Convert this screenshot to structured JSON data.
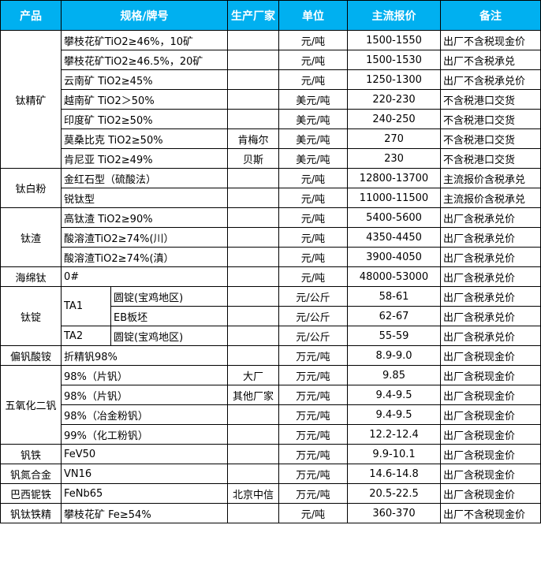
{
  "header": {
    "product": "产品",
    "spec": "规格/牌号",
    "maker": "生产厂家",
    "unit": "单位",
    "price": "主流报价",
    "note": "备注"
  },
  "header_color": "#00b0f0",
  "groups": [
    {
      "product": "钛精矿",
      "rows": [
        {
          "spec": "攀枝花矿TiO2≥46%，10矿",
          "maker": "",
          "unit": "元/吨",
          "price": "1500-1550",
          "note": "出厂不含税现金价"
        },
        {
          "spec": "攀枝花矿TiO2≥46.5%，20矿",
          "maker": "",
          "unit": "元/吨",
          "price": "1500-1530",
          "note": "出厂不含税承兑"
        },
        {
          "spec": "云南矿 TiO2≥45%",
          "maker": "",
          "unit": "元/吨",
          "price": "1250-1300",
          "note": "出厂不含税承兑价"
        },
        {
          "spec": "越南矿 TiO2＞50%",
          "maker": "",
          "unit": "美元/吨",
          "price": "220-230",
          "note": "不含税港口交货"
        },
        {
          "spec": "印度矿 TiO2≥50%",
          "maker": "",
          "unit": "美元/吨",
          "price": "240-250",
          "note": "不含税港口交货"
        },
        {
          "spec": "莫桑比克 TiO2≥50%",
          "maker": "肯梅尔",
          "unit": "美元/吨",
          "price": "270",
          "note": "不含税港口交货"
        },
        {
          "spec": "肯尼亚 TiO2≥49%",
          "maker": "贝斯",
          "unit": "美元/吨",
          "price": "230",
          "note": "不含税港口交货"
        }
      ]
    },
    {
      "product": "钛白粉",
      "rows": [
        {
          "spec": "金红石型（硫酸法）",
          "maker": "",
          "unit": "元/吨",
          "price": "12800-13700",
          "note": "主流报价含税承兑"
        },
        {
          "spec": "锐钛型",
          "maker": "",
          "unit": "元/吨",
          "price": "11000-11500",
          "note": "主流报价含税承兑"
        }
      ]
    },
    {
      "product": "钛渣",
      "rows": [
        {
          "spec": "高钛渣 TiO2≥90%",
          "maker": "",
          "unit": "元/吨",
          "price": "5400-5600",
          "note": "出厂含税承兑价"
        },
        {
          "spec": "酸溶渣TiO2≥74%(川）",
          "maker": "",
          "unit": "元/吨",
          "price": "4350-4450",
          "note": "出厂含税承兑价"
        },
        {
          "spec": "酸溶渣TiO2≥74%(滇）",
          "maker": "",
          "unit": "元/吨",
          "price": "3900-4050",
          "note": "出厂含税承兑价"
        }
      ]
    },
    {
      "product": "海绵钛",
      "rows": [
        {
          "spec": "0#",
          "maker": "",
          "unit": "元/吨",
          "price": "48000-53000",
          "note": "出厂含税承兑价"
        }
      ]
    },
    {
      "product": "钛锭",
      "rows": [
        {
          "grade": "TA1",
          "grade_span": 2,
          "spec": "圆锭(宝鸡地区)",
          "maker": "",
          "unit": "元/公斤",
          "price": "58-61",
          "note": "出厂含税承兑价"
        },
        {
          "spec": "EB板坯",
          "maker": "",
          "unit": "元/公斤",
          "price": "62-67",
          "note": "出厂含税承兑价"
        },
        {
          "grade": "TA2",
          "grade_span": 1,
          "spec": "圆锭(宝鸡地区)",
          "maker": "",
          "unit": "元/公斤",
          "price": "55-59",
          "note": "出厂含税承兑价"
        }
      ]
    },
    {
      "product": "偏钒酸铵",
      "rows": [
        {
          "spec": "折精钒98%",
          "maker": "",
          "unit": "万元/吨",
          "price": "8.9-9.0",
          "note": "出厂含税现金价"
        }
      ]
    },
    {
      "product": "五氧化二钒",
      "rows": [
        {
          "spec": "98%（片钒）",
          "maker": "大厂",
          "unit": "万元/吨",
          "price": "9.85",
          "note": "出厂含税现金价"
        },
        {
          "spec": "98%（片钒）",
          "maker": "其他厂家",
          "unit": "万元/吨",
          "price": "9.4-9.5",
          "note": "出厂含税现金价"
        },
        {
          "spec": "98%（冶金粉钒）",
          "maker": "",
          "unit": "万元/吨",
          "price": "9.4-9.5",
          "note": "出厂含税现金价"
        },
        {
          "spec": "99%（化工粉钒）",
          "maker": "",
          "unit": "万元/吨",
          "price": "12.2-12.4",
          "note": "出厂含税现金价"
        }
      ]
    },
    {
      "product": "钒铁",
      "rows": [
        {
          "spec": "FeV50",
          "maker": "",
          "unit": "万元/吨",
          "price": "9.9-10.1",
          "note": "出厂含税现金价"
        }
      ]
    },
    {
      "product": "钒氮合金",
      "rows": [
        {
          "spec": "VN16",
          "maker": "",
          "unit": "万元/吨",
          "price": "14.6-14.8",
          "note": "出厂含税现金价"
        }
      ]
    },
    {
      "product": "巴西铌铁",
      "rows": [
        {
          "spec": "FeNb65",
          "maker": "北京中信",
          "unit": "万元/吨",
          "price": "20.5-22.5",
          "note": "出厂含税现金价"
        }
      ]
    },
    {
      "product": "钒钛铁精",
      "rows": [
        {
          "spec": "攀枝花矿 Fe≥54%",
          "maker": "",
          "unit": "元/吨",
          "price": "360-370",
          "note": "出厂不含税现金价"
        }
      ]
    }
  ]
}
